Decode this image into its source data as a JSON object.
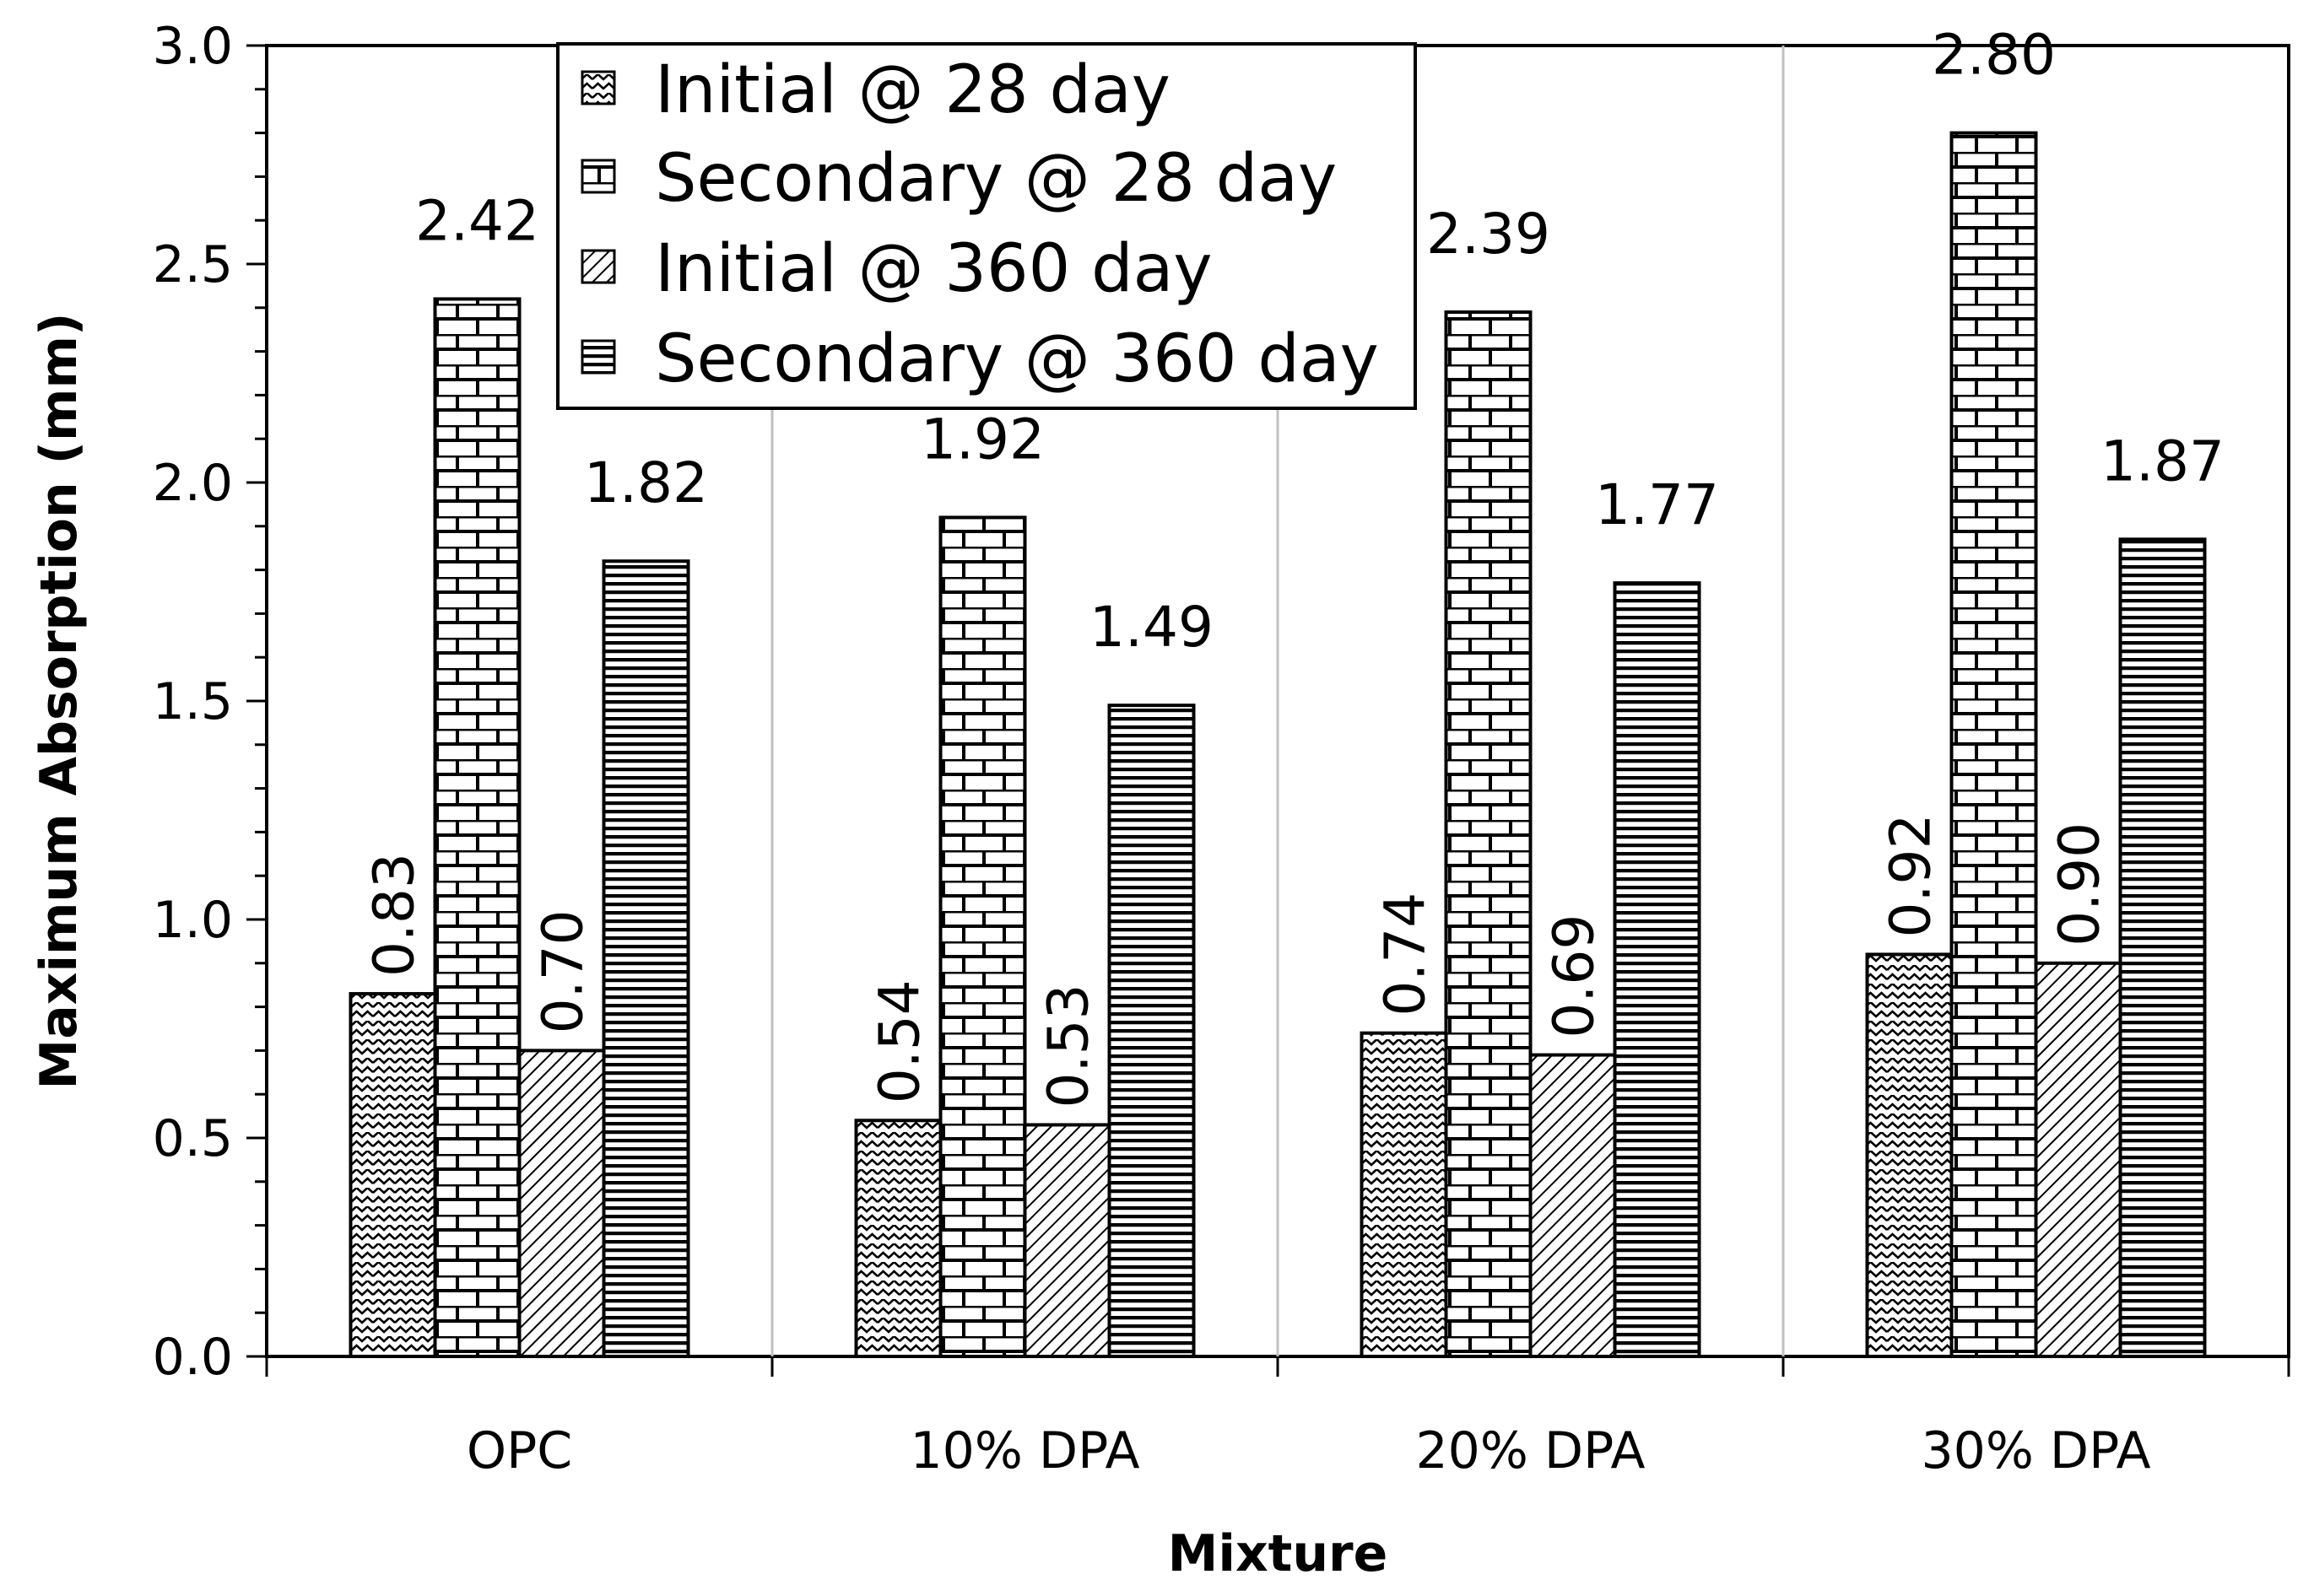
{
  "chart_data": {
    "type": "bar",
    "title": "",
    "xlabel": "Mixture",
    "ylabel": "Maximum Absorption (mm)",
    "ylim": [
      0,
      3
    ],
    "yticks": [
      "0.0",
      "0.5",
      "1.0",
      "1.5",
      "2.0",
      "2.5",
      "3.0"
    ],
    "ytick_values": [
      0,
      0.5,
      1.0,
      1.5,
      2.0,
      2.5,
      3.0
    ],
    "grid": "vertical",
    "legend_position": "top-center",
    "categories": [
      "OPC",
      "10% DPA",
      "20% DPA",
      "30% DPA"
    ],
    "series": [
      {
        "name": "Initial @ 28 day",
        "pattern": "wave",
        "values": [
          0.83,
          0.54,
          0.74,
          0.92
        ],
        "labels": [
          "0.83",
          "0.54",
          "0.74",
          "0.92"
        ],
        "label_orientation": "vertical"
      },
      {
        "name": "Secondary @ 28 day",
        "pattern": "brick",
        "values": [
          2.42,
          1.92,
          2.39,
          2.8
        ],
        "labels": [
          "2.42",
          "1.92",
          "2.39",
          "2.80"
        ],
        "label_orientation": "horizontal"
      },
      {
        "name": "Initial @ 360 day",
        "pattern": "diagonal",
        "values": [
          0.7,
          0.53,
          0.69,
          0.9
        ],
        "labels": [
          "0.70",
          "0.53",
          "0.69",
          "0.90"
        ],
        "label_orientation": "vertical"
      },
      {
        "name": "Secondary @ 360 day",
        "pattern": "horizontal-stripes",
        "values": [
          1.82,
          1.49,
          1.77,
          1.87
        ],
        "labels": [
          "1.82",
          "1.49",
          "1.77",
          "1.87"
        ],
        "label_orientation": "horizontal"
      }
    ],
    "colors": {
      "ink": "#000000",
      "grid": "#c0c0c0",
      "background": "#ffffff"
    }
  }
}
